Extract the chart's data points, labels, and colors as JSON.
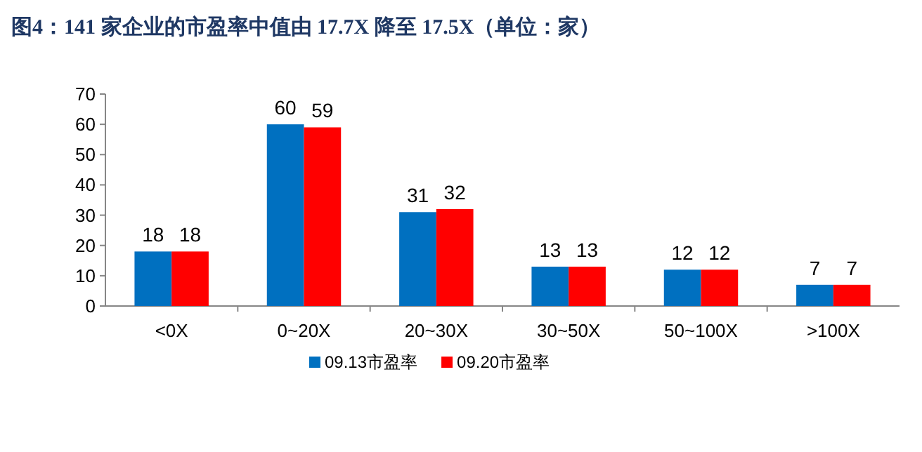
{
  "chart_data": {
    "type": "bar",
    "title": "图4：141 家企业的市盈率中值由 17.7X 降至 17.5X（单位：家）",
    "categories": [
      "<0X",
      "0~20X",
      "20~30X",
      "30~50X",
      "50~100X",
      ">100X"
    ],
    "series": [
      {
        "name": "09.13市盈率",
        "color": "#0070c0",
        "values": [
          18,
          60,
          31,
          13,
          12,
          7
        ]
      },
      {
        "name": "09.20市盈率",
        "color": "#ff0000",
        "values": [
          18,
          59,
          32,
          13,
          12,
          7
        ]
      }
    ],
    "ylim": [
      0,
      70
    ],
    "yticks": [
      0,
      10,
      20,
      30,
      40,
      50,
      60,
      70
    ],
    "data_labels": true,
    "legend": "bottom"
  }
}
